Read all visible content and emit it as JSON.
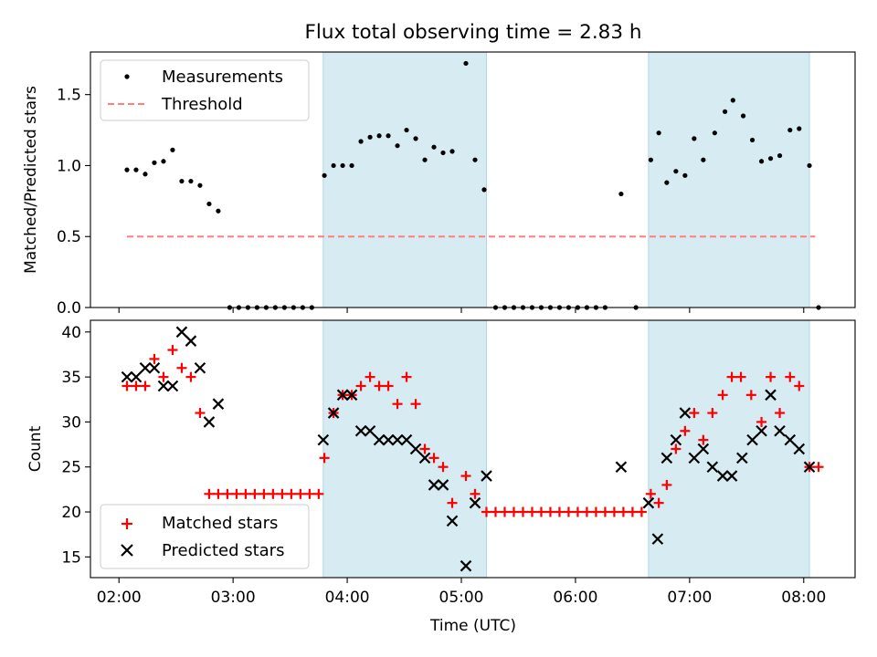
{
  "chart_data": [
    {
      "type": "scatter",
      "title": "Flux total observing time = 2.83 h",
      "xlabel": "",
      "ylabel": "Matched/Predicted stars",
      "xlim": [
        1.75,
        8.45
      ],
      "ylim": [
        0,
        1.8
      ],
      "yticks": [
        0.0,
        0.5,
        1.0,
        1.5
      ],
      "ytick_labels": [
        "0.0",
        "0.5",
        "1.0",
        "1.5"
      ],
      "xticks": [
        2,
        3,
        4,
        5,
        6,
        7,
        8
      ],
      "highlight_spans": [
        [
          3.79,
          5.22
        ],
        [
          6.64,
          8.05
        ]
      ],
      "threshold": {
        "y": 0.5,
        "x_start": 2.07,
        "x_end": 8.1,
        "color": "#ff7f7f"
      },
      "legend": {
        "position": "upper-left",
        "entries": [
          "Measurements",
          "Threshold"
        ]
      },
      "series": [
        {
          "name": "Measurements",
          "color": "#000000",
          "points": [
            [
              2.07,
              0.97
            ],
            [
              2.15,
              0.97
            ],
            [
              2.23,
              0.94
            ],
            [
              2.31,
              1.02
            ],
            [
              2.39,
              1.03
            ],
            [
              2.47,
              1.11
            ],
            [
              2.55,
              0.89
            ],
            [
              2.63,
              0.89
            ],
            [
              2.71,
              0.86
            ],
            [
              2.79,
              0.73
            ],
            [
              2.87,
              0.68
            ],
            [
              2.97,
              0
            ],
            [
              3.05,
              0
            ],
            [
              3.13,
              0
            ],
            [
              3.21,
              0
            ],
            [
              3.29,
              0
            ],
            [
              3.37,
              0
            ],
            [
              3.45,
              0
            ],
            [
              3.53,
              0
            ],
            [
              3.61,
              0
            ],
            [
              3.69,
              0
            ],
            [
              3.8,
              0.93
            ],
            [
              3.88,
              1.0
            ],
            [
              3.96,
              1.0
            ],
            [
              4.04,
              1.0
            ],
            [
              4.12,
              1.17
            ],
            [
              4.2,
              1.2
            ],
            [
              4.28,
              1.21
            ],
            [
              4.36,
              1.21
            ],
            [
              4.44,
              1.14
            ],
            [
              4.52,
              1.25
            ],
            [
              4.6,
              1.19
            ],
            [
              4.68,
              1.04
            ],
            [
              4.76,
              1.13
            ],
            [
              4.84,
              1.09
            ],
            [
              4.92,
              1.1
            ],
            [
              5.04,
              1.72
            ],
            [
              5.12,
              1.04
            ],
            [
              5.2,
              0.83
            ],
            [
              5.3,
              0
            ],
            [
              5.38,
              0
            ],
            [
              5.46,
              0
            ],
            [
              5.54,
              0
            ],
            [
              5.62,
              0
            ],
            [
              5.7,
              0
            ],
            [
              5.78,
              0
            ],
            [
              5.86,
              0
            ],
            [
              5.94,
              0
            ],
            [
              6.02,
              0
            ],
            [
              6.1,
              0
            ],
            [
              6.18,
              0
            ],
            [
              6.26,
              0
            ],
            [
              6.4,
              0.8
            ],
            [
              6.53,
              0
            ],
            [
              6.66,
              1.04
            ],
            [
              6.73,
              1.23
            ],
            [
              6.8,
              0.88
            ],
            [
              6.88,
              0.96
            ],
            [
              6.96,
              0.93
            ],
            [
              7.04,
              1.19
            ],
            [
              7.12,
              1.04
            ],
            [
              7.22,
              1.23
            ],
            [
              7.31,
              1.38
            ],
            [
              7.38,
              1.46
            ],
            [
              7.47,
              1.35
            ],
            [
              7.55,
              1.18
            ],
            [
              7.63,
              1.03
            ],
            [
              7.71,
              1.05
            ],
            [
              7.79,
              1.07
            ],
            [
              7.88,
              1.25
            ],
            [
              7.96,
              1.26
            ],
            [
              8.05,
              1.0
            ],
            [
              8.13,
              0
            ]
          ]
        }
      ]
    },
    {
      "type": "scatter",
      "title": "",
      "xlabel": "Time (UTC)",
      "ylabel": "Count",
      "xlim": [
        1.75,
        8.45
      ],
      "ylim": [
        12.7,
        41.3
      ],
      "yticks": [
        15,
        20,
        25,
        30,
        35,
        40
      ],
      "ytick_labels": [
        "15",
        "20",
        "25",
        "30",
        "35",
        "40"
      ],
      "xticks": [
        2,
        3,
        4,
        5,
        6,
        7,
        8
      ],
      "xtick_labels": [
        "02:00",
        "03:00",
        "04:00",
        "05:00",
        "06:00",
        "07:00",
        "08:00"
      ],
      "highlight_spans": [
        [
          3.79,
          5.22
        ],
        [
          6.64,
          8.05
        ]
      ],
      "legend": {
        "position": "lower-left",
        "entries": [
          "Matched stars",
          "Predicted stars"
        ]
      },
      "series": [
        {
          "name": "Matched stars",
          "marker": "plus",
          "color": "#ff0000",
          "points": [
            [
              2.07,
              34
            ],
            [
              2.15,
              34
            ],
            [
              2.23,
              34
            ],
            [
              2.31,
              37
            ],
            [
              2.39,
              35
            ],
            [
              2.47,
              38
            ],
            [
              2.55,
              36
            ],
            [
              2.63,
              35
            ],
            [
              2.71,
              31
            ],
            [
              2.79,
              22
            ],
            [
              2.87,
              22
            ],
            [
              2.95,
              22
            ],
            [
              3.03,
              22
            ],
            [
              3.11,
              22
            ],
            [
              3.19,
              22
            ],
            [
              3.27,
              22
            ],
            [
              3.35,
              22
            ],
            [
              3.43,
              22
            ],
            [
              3.51,
              22
            ],
            [
              3.59,
              22
            ],
            [
              3.67,
              22
            ],
            [
              3.75,
              22
            ],
            [
              3.8,
              26
            ],
            [
              3.88,
              31
            ],
            [
              3.96,
              33
            ],
            [
              4.04,
              33
            ],
            [
              4.12,
              34
            ],
            [
              4.2,
              35
            ],
            [
              4.28,
              34
            ],
            [
              4.36,
              34
            ],
            [
              4.44,
              32
            ],
            [
              4.52,
              35
            ],
            [
              4.6,
              32
            ],
            [
              4.68,
              27
            ],
            [
              4.76,
              26
            ],
            [
              4.84,
              25
            ],
            [
              4.92,
              21
            ],
            [
              5.04,
              24
            ],
            [
              5.12,
              22
            ],
            [
              5.22,
              20
            ],
            [
              5.3,
              20
            ],
            [
              5.38,
              20
            ],
            [
              5.46,
              20
            ],
            [
              5.54,
              20
            ],
            [
              5.62,
              20
            ],
            [
              5.7,
              20
            ],
            [
              5.78,
              20
            ],
            [
              5.86,
              20
            ],
            [
              5.94,
              20
            ],
            [
              6.02,
              20
            ],
            [
              6.1,
              20
            ],
            [
              6.18,
              20
            ],
            [
              6.26,
              20
            ],
            [
              6.34,
              20
            ],
            [
              6.42,
              20
            ],
            [
              6.5,
              20
            ],
            [
              6.58,
              20
            ],
            [
              6.66,
              22
            ],
            [
              6.73,
              21
            ],
            [
              6.8,
              23
            ],
            [
              6.88,
              27
            ],
            [
              6.96,
              29
            ],
            [
              7.04,
              31
            ],
            [
              7.12,
              28
            ],
            [
              7.2,
              31
            ],
            [
              7.29,
              33
            ],
            [
              7.37,
              35
            ],
            [
              7.45,
              35
            ],
            [
              7.54,
              33
            ],
            [
              7.63,
              30
            ],
            [
              7.71,
              35
            ],
            [
              7.79,
              31
            ],
            [
              7.88,
              35
            ],
            [
              7.96,
              34
            ],
            [
              8.05,
              25
            ],
            [
              8.13,
              25
            ]
          ]
        },
        {
          "name": "Predicted stars",
          "marker": "x",
          "color": "#000000",
          "points": [
            [
              2.07,
              35
            ],
            [
              2.15,
              35
            ],
            [
              2.23,
              36
            ],
            [
              2.31,
              36
            ],
            [
              2.39,
              34
            ],
            [
              2.47,
              34
            ],
            [
              2.55,
              40
            ],
            [
              2.63,
              39
            ],
            [
              2.71,
              36
            ],
            [
              2.79,
              30
            ],
            [
              2.87,
              32
            ],
            [
              3.79,
              28
            ],
            [
              3.88,
              31
            ],
            [
              3.96,
              33
            ],
            [
              4.04,
              33
            ],
            [
              4.12,
              29
            ],
            [
              4.2,
              29
            ],
            [
              4.28,
              28
            ],
            [
              4.36,
              28
            ],
            [
              4.44,
              28
            ],
            [
              4.52,
              28
            ],
            [
              4.6,
              27
            ],
            [
              4.68,
              26
            ],
            [
              4.76,
              23
            ],
            [
              4.84,
              23
            ],
            [
              4.92,
              19
            ],
            [
              5.04,
              14
            ],
            [
              5.12,
              21
            ],
            [
              5.22,
              24
            ],
            [
              6.4,
              25
            ],
            [
              6.64,
              21
            ],
            [
              6.72,
              17
            ],
            [
              6.8,
              26
            ],
            [
              6.88,
              28
            ],
            [
              6.96,
              31
            ],
            [
              7.04,
              26
            ],
            [
              7.12,
              27
            ],
            [
              7.2,
              25
            ],
            [
              7.29,
              24
            ],
            [
              7.37,
              24
            ],
            [
              7.46,
              26
            ],
            [
              7.55,
              28
            ],
            [
              7.63,
              29
            ],
            [
              7.71,
              33
            ],
            [
              7.79,
              29
            ],
            [
              7.88,
              28
            ],
            [
              7.96,
              27
            ],
            [
              8.05,
              25
            ]
          ]
        }
      ]
    }
  ]
}
